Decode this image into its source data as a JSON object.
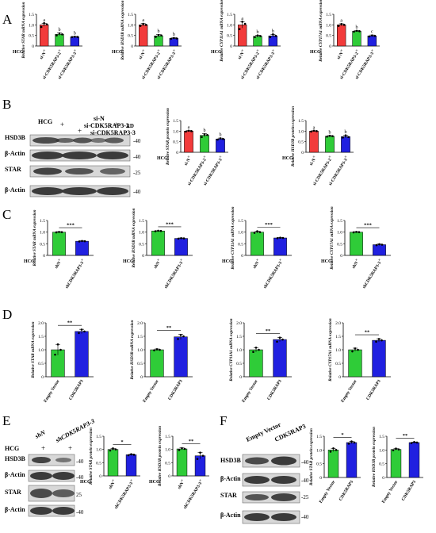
{
  "panels": [
    {
      "letter": "A"
    },
    {
      "letter": "B"
    },
    {
      "letter": "C"
    },
    {
      "letter": "D"
    },
    {
      "letter": "E"
    },
    {
      "letter": "F"
    }
  ],
  "colors": {
    "red": "#f23b3b",
    "green": "#2fcc38",
    "blue": "#2020e0",
    "axis": "#000000"
  },
  "blots": {
    "B": {
      "header_labels": [
        "HCG",
        "si-N",
        "si-CDK5RAP3-2",
        "si-CDK5RAP3-3",
        "kD"
      ],
      "plus_signs": [
        "-",
        "+",
        "-",
        "+",
        "-",
        "+"
      ],
      "rows": [
        {
          "protein": "HSD3B",
          "kd": "-40"
        },
        {
          "protein": "β-Actin",
          "kd": "-40"
        },
        {
          "protein": "STAR",
          "kd": "-25"
        },
        {
          "protein": "β-Actin",
          "kd": "-40"
        }
      ]
    },
    "E": {
      "header_labels": [
        "shN",
        "shCDK5RAP3-3",
        "HCG"
      ],
      "plus_signs": [
        "+",
        "+"
      ],
      "rows": [
        {
          "protein": "HSD3B",
          "kd": "-40"
        },
        {
          "protein": "β-Actin",
          "kd": "-40"
        },
        {
          "protein": "STAR",
          "kd": "25"
        },
        {
          "protein": "β-Actin",
          "kd": "-40"
        }
      ]
    },
    "F": {
      "header_labels": [
        "Empty Vector",
        "CDK5RAP3"
      ],
      "rows": [
        {
          "protein": "HSD3B",
          "kd": "-40"
        },
        {
          "protein": "β-Actin",
          "kd": "-40"
        },
        {
          "protein": "STAR",
          "kd": "-25"
        },
        {
          "protein": "β-Actin",
          "kd": "-40"
        }
      ]
    }
  },
  "chart_data": [
    {
      "id": "A1",
      "type": "bar",
      "ylabel": "Relative STAR mRNA expression",
      "ylim": [
        0,
        1.5
      ],
      "yticks": [
        0,
        0.5,
        1.0,
        1.5
      ],
      "categories": [
        "si-N",
        "si-CDK5RAP3-2",
        "si-CDK5RAP3-3"
      ],
      "hcg": [
        "+",
        "+",
        "+"
      ],
      "hcg_label": "HCG",
      "values": [
        1.0,
        0.55,
        0.43
      ],
      "errors": [
        0.07,
        0.06,
        0.02
      ],
      "colors": [
        "red",
        "green",
        "blue"
      ],
      "letters": [
        "a",
        "b",
        "b"
      ],
      "points": [
        [
          0.9,
          1.08,
          1.02
        ],
        [
          0.5,
          0.6,
          0.55
        ],
        [
          0.42,
          0.44,
          0.43
        ]
      ]
    },
    {
      "id": "A2",
      "type": "bar",
      "ylabel": "Relative HSD3B mRNA expression",
      "ylim": [
        0,
        1.5
      ],
      "yticks": [
        0,
        0.5,
        1.0,
        1.5
      ],
      "categories": [
        "si-N",
        "si-CDK5RAP3-2",
        "si-CDK5RAP3-3"
      ],
      "hcg": [
        "+",
        "+",
        "+"
      ],
      "hcg_label": "HCG",
      "values": [
        1.0,
        0.48,
        0.36
      ],
      "errors": [
        0.06,
        0.06,
        0.03
      ],
      "colors": [
        "red",
        "green",
        "blue"
      ],
      "letters": [
        "a",
        "b",
        "b"
      ],
      "points": [
        [
          0.95,
          1.05,
          1.0
        ],
        [
          0.43,
          0.52,
          0.5
        ],
        [
          0.34,
          0.38,
          0.36
        ]
      ]
    },
    {
      "id": "A3",
      "type": "bar",
      "ylabel": "Relative CYP11A1 mRNA expression",
      "ylim": [
        0,
        1.5
      ],
      "yticks": [
        0,
        0.5,
        1.0,
        1.5
      ],
      "categories": [
        "si-N",
        "si-CDK5RAP3-2",
        "si-CDK5RAP3-3"
      ],
      "hcg": [
        "+",
        "+",
        "+"
      ],
      "hcg_label": "HCG",
      "values": [
        1.0,
        0.46,
        0.48
      ],
      "errors": [
        0.15,
        0.05,
        0.06
      ],
      "colors": [
        "red",
        "green",
        "blue"
      ],
      "letters": [
        "a",
        "b",
        "b"
      ],
      "points": [
        [
          0.8,
          1.15,
          1.05
        ],
        [
          0.42,
          0.5,
          0.47
        ],
        [
          0.42,
          0.55,
          0.48
        ]
      ]
    },
    {
      "id": "A4",
      "type": "bar",
      "ylabel": "Relative CYP17A1 mRNA expression",
      "ylim": [
        0,
        1.5
      ],
      "yticks": [
        0,
        0.5,
        1.0,
        1.5
      ],
      "categories": [
        "si-N",
        "si-CDK5RAP3-2",
        "si-CDK5RAP3-3"
      ],
      "hcg": [
        "+",
        "+",
        "+"
      ],
      "hcg_label": "HCG",
      "values": [
        1.0,
        0.7,
        0.48
      ],
      "errors": [
        0.05,
        0.03,
        0.04
      ],
      "colors": [
        "red",
        "green",
        "blue"
      ],
      "letters": [
        "a",
        "b",
        "c"
      ],
      "points": [
        [
          0.95,
          1.04,
          1.0
        ],
        [
          0.68,
          0.72,
          0.7
        ],
        [
          0.45,
          0.5,
          0.48
        ]
      ]
    },
    {
      "id": "B1",
      "type": "bar",
      "ylabel": "Relative STAR protein expression",
      "ylim": [
        0,
        1.5
      ],
      "yticks": [
        0,
        0.5,
        1.0,
        1.5
      ],
      "categories": [
        "si-N",
        "si-CDK5RAP3-2",
        "si-CDK5RAP3-3"
      ],
      "hcg": [
        "+",
        "+",
        "+"
      ],
      "hcg_label": "HCG",
      "values": [
        1.0,
        0.8,
        0.63
      ],
      "errors": [
        0.03,
        0.08,
        0.04
      ],
      "colors": [
        "red",
        "green",
        "blue"
      ],
      "letters": [
        "a",
        "b",
        "b"
      ],
      "points": [
        [
          0.98,
          1.02,
          1.0
        ],
        [
          0.72,
          0.85,
          0.82
        ],
        [
          0.6,
          0.66,
          0.63
        ]
      ]
    },
    {
      "id": "B2",
      "type": "bar",
      "ylabel": "Relative HSD3B protein expression",
      "ylim": [
        0,
        1.5
      ],
      "yticks": [
        0,
        0.5,
        1.0,
        1.5
      ],
      "categories": [
        "si-N",
        "si-CDK5RAP3-2",
        "si-CDK5RAP3-3"
      ],
      "hcg": [
        "+",
        "+",
        "+"
      ],
      "hcg_label": "HCG",
      "values": [
        1.0,
        0.76,
        0.74
      ],
      "errors": [
        0.02,
        0.03,
        0.06
      ],
      "colors": [
        "red",
        "green",
        "blue"
      ],
      "letters": [
        "a",
        "b",
        "b"
      ],
      "points": [
        [
          0.98,
          1.02,
          1.0
        ],
        [
          0.74,
          0.78,
          0.76
        ],
        [
          0.7,
          0.8,
          0.72
        ]
      ]
    },
    {
      "id": "C1",
      "type": "bar",
      "ylabel": "Relative STAR mRNA expression",
      "ylim": [
        0,
        1.5
      ],
      "yticks": [
        0,
        0.5,
        1.0,
        1.5
      ],
      "categories": [
        "shN",
        "shCDK5RAP3-3"
      ],
      "hcg": [
        "+",
        "+"
      ],
      "hcg_label": "HCG",
      "values": [
        1.0,
        0.61
      ],
      "errors": [
        0.02,
        0.02
      ],
      "colors": [
        "green",
        "blue"
      ],
      "sig": "***",
      "points": [
        [
          0.99,
          1.01,
          1.0
        ],
        [
          0.6,
          0.62,
          0.61
        ]
      ]
    },
    {
      "id": "C2",
      "type": "bar",
      "ylabel": "Relative HSD3B mRNA expression",
      "ylim": [
        0,
        1.5
      ],
      "yticks": [
        0,
        0.5,
        1.0,
        1.5
      ],
      "categories": [
        "shN",
        "shCDK5RAP3-3"
      ],
      "hcg": [
        "+",
        "+"
      ],
      "hcg_label": "HCG",
      "values": [
        1.05,
        0.73
      ],
      "errors": [
        0.01,
        0.02
      ],
      "colors": [
        "green",
        "blue"
      ],
      "sig": "***",
      "points": [
        [
          1.04,
          1.06,
          1.05
        ],
        [
          0.72,
          0.74,
          0.73
        ]
      ]
    },
    {
      "id": "C3",
      "type": "bar",
      "ylabel": "Relative CYP11A1 mRNA expression",
      "ylim": [
        0,
        1.5
      ],
      "yticks": [
        0,
        0.5,
        1.0,
        1.5
      ],
      "categories": [
        "shN",
        "shCDK5RAP3-3"
      ],
      "hcg": [
        "+",
        "+"
      ],
      "hcg_label": "HCG",
      "values": [
        1.0,
        0.75
      ],
      "errors": [
        0.04,
        0.02
      ],
      "colors": [
        "green",
        "blue"
      ],
      "sig": "***",
      "points": [
        [
          0.97,
          1.04,
          1.0
        ],
        [
          0.74,
          0.76,
          0.75
        ]
      ]
    },
    {
      "id": "C4",
      "type": "bar",
      "ylabel": "Relative CYP17A1 mRNA expression",
      "ylim": [
        0,
        1.5
      ],
      "yticks": [
        0,
        0.5,
        1.0,
        1.5
      ],
      "categories": [
        "shN",
        "shCDK5RAP3-3"
      ],
      "hcg": [
        "+",
        "+"
      ],
      "hcg_label": "HCG",
      "values": [
        1.0,
        0.46
      ],
      "errors": [
        0.02,
        0.03
      ],
      "colors": [
        "green",
        "blue"
      ],
      "sig": "***",
      "points": [
        [
          0.99,
          1.01,
          1.0
        ],
        [
          0.44,
          0.48,
          0.46
        ]
      ]
    },
    {
      "id": "D1",
      "type": "bar",
      "ylabel": "Relative STAR mRNA expression",
      "ylim": [
        0,
        2.0
      ],
      "yticks": [
        0,
        0.5,
        1.0,
        1.5,
        2.0
      ],
      "categories": [
        "Empty Vector",
        "CDK5RAP3"
      ],
      "values": [
        1.0,
        1.68
      ],
      "errors": [
        0.2,
        0.08
      ],
      "colors": [
        "green",
        "blue"
      ],
      "sig": "**",
      "points": [
        [
          0.82,
          1.2,
          1.0
        ],
        [
          1.62,
          1.75,
          1.68
        ]
      ]
    },
    {
      "id": "D2",
      "type": "bar",
      "ylabel": "Relative HSD3B mRNA expression",
      "ylim": [
        0,
        2.0
      ],
      "yticks": [
        0,
        0.5,
        1.0,
        1.5,
        2.0
      ],
      "categories": [
        "Empty Vector",
        "CDK5RAP3"
      ],
      "values": [
        1.0,
        1.48
      ],
      "errors": [
        0.03,
        0.1
      ],
      "colors": [
        "green",
        "blue"
      ],
      "sig": "**",
      "points": [
        [
          0.98,
          1.02,
          1.0
        ],
        [
          1.4,
          1.55,
          1.5
        ]
      ]
    },
    {
      "id": "D3",
      "type": "bar",
      "ylabel": "Relative CYP11A1 mRNA expression",
      "ylim": [
        0,
        2.0
      ],
      "yticks": [
        0,
        0.5,
        1.0,
        1.5,
        2.0
      ],
      "categories": [
        "Empty Vector",
        "CDK5RAP3"
      ],
      "values": [
        1.0,
        1.38
      ],
      "errors": [
        0.08,
        0.08
      ],
      "colors": [
        "green",
        "blue"
      ],
      "sig": "**",
      "points": [
        [
          0.92,
          1.08,
          1.0
        ],
        [
          1.3,
          1.45,
          1.38
        ]
      ]
    },
    {
      "id": "D4",
      "type": "bar",
      "ylabel": "Relative CYP17A1 mRNA expression",
      "ylim": [
        0,
        2.0
      ],
      "yticks": [
        0,
        0.5,
        1.0,
        1.5,
        2.0
      ],
      "categories": [
        "Empty Vector",
        "CDK5RAP3"
      ],
      "values": [
        1.0,
        1.35
      ],
      "errors": [
        0.06,
        0.06
      ],
      "colors": [
        "green",
        "blue"
      ],
      "sig": "**",
      "points": [
        [
          0.94,
          1.05,
          1.0
        ],
        [
          1.3,
          1.4,
          1.35
        ]
      ]
    },
    {
      "id": "E1",
      "type": "bar",
      "ylabel": "Relative STAR protein expression",
      "ylim": [
        0,
        1.5
      ],
      "yticks": [
        0,
        0.5,
        1.0,
        1.5
      ],
      "categories": [
        "shN",
        "shCDK5RAP3-3"
      ],
      "hcg": [
        "+",
        "+"
      ],
      "hcg_label": "HCG",
      "values": [
        1.0,
        0.8
      ],
      "errors": [
        0.04,
        0.03
      ],
      "colors": [
        "green",
        "blue"
      ],
      "sig": "*",
      "points": [
        [
          0.96,
          1.04,
          1.0
        ],
        [
          0.78,
          0.82,
          0.8
        ]
      ]
    },
    {
      "id": "E2",
      "type": "bar",
      "ylabel": "Relative HSD3B protein expression",
      "ylim": [
        0,
        1.5
      ],
      "yticks": [
        0,
        0.5,
        1.0,
        1.5
      ],
      "categories": [
        "shN",
        "shCDK5RAP3-3"
      ],
      "hcg": [
        "+",
        "+"
      ],
      "hcg_label": "HCG",
      "values": [
        1.02,
        0.76
      ],
      "errors": [
        0.04,
        0.12
      ],
      "colors": [
        "green",
        "blue"
      ],
      "sig": "**",
      "points": [
        [
          0.98,
          1.05,
          1.02
        ],
        [
          0.64,
          0.88,
          0.76
        ]
      ]
    },
    {
      "id": "F1",
      "type": "bar",
      "ylabel": "Relative STAR protein expression",
      "ylim": [
        0,
        1.5
      ],
      "yticks": [
        0,
        0.5,
        1.0,
        1.5
      ],
      "categories": [
        "Empty Vector",
        "CDK5RAP3"
      ],
      "values": [
        1.0,
        1.27
      ],
      "errors": [
        0.06,
        0.04
      ],
      "colors": [
        "green",
        "blue"
      ],
      "sig": "*",
      "points": [
        [
          0.94,
          1.06,
          1.0
        ],
        [
          1.23,
          1.31,
          1.27
        ]
      ]
    },
    {
      "id": "F2",
      "type": "bar",
      "ylabel": "Relative HSD3B protein expression",
      "ylim": [
        0,
        1.5
      ],
      "yticks": [
        0,
        0.5,
        1.0,
        1.5
      ],
      "categories": [
        "Empty Vector",
        "CDK5RAP3"
      ],
      "values": [
        1.02,
        1.27
      ],
      "errors": [
        0.03,
        0.02
      ],
      "colors": [
        "green",
        "blue"
      ],
      "sig": "**",
      "points": [
        [
          0.99,
          1.05,
          1.02
        ],
        [
          1.25,
          1.29,
          1.27
        ]
      ]
    }
  ]
}
